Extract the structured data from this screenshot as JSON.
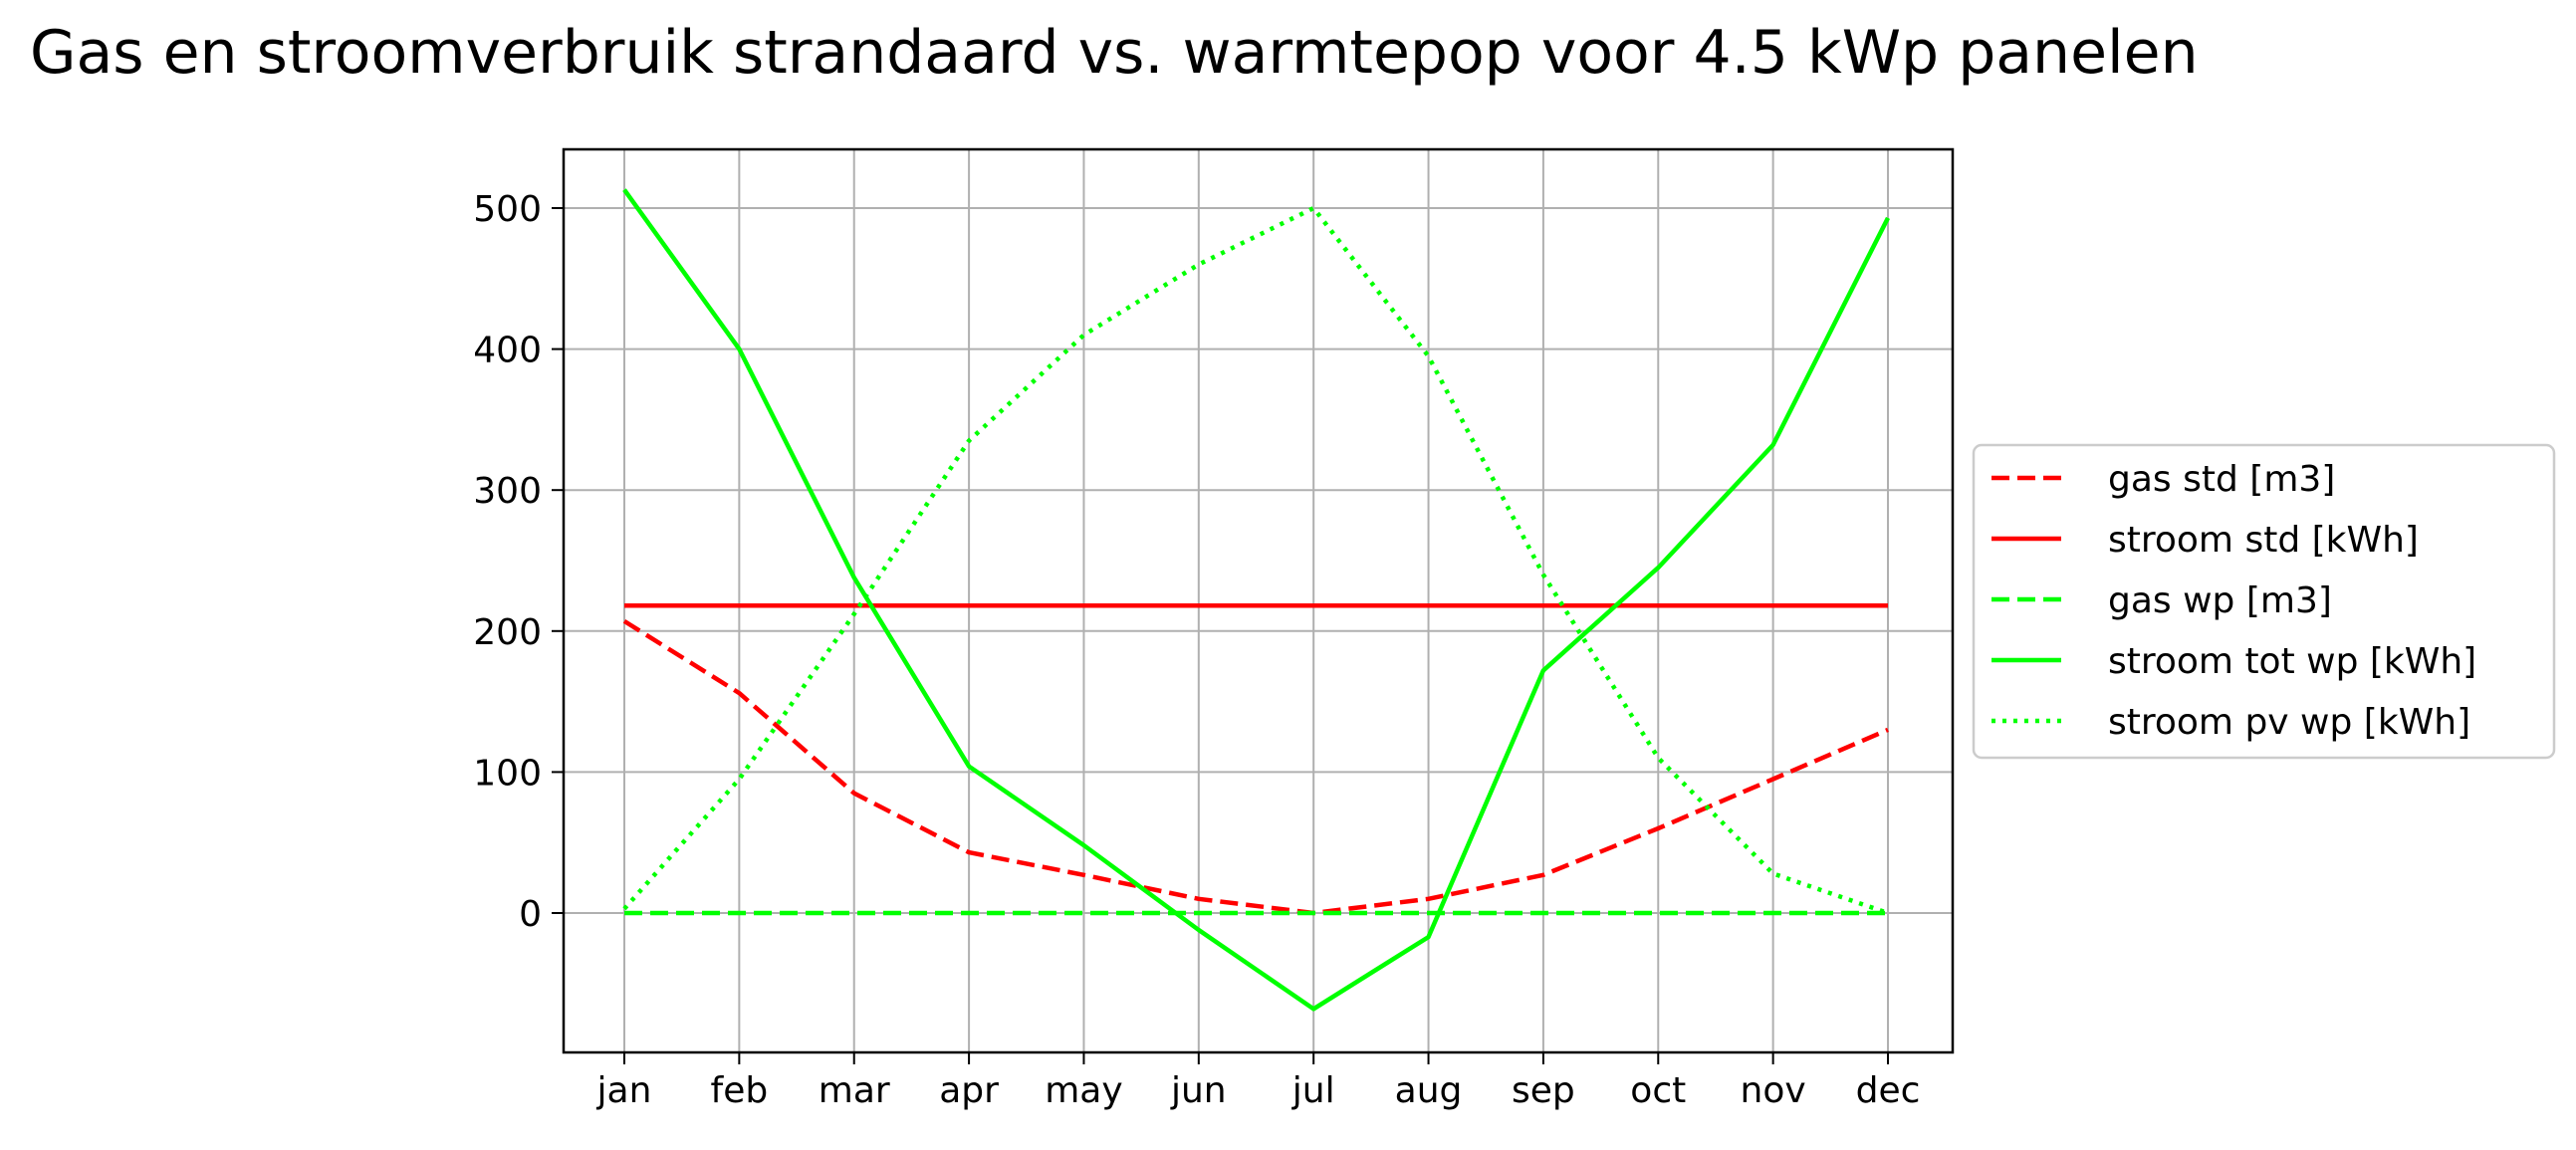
{
  "chart_data": {
    "type": "line",
    "title": "Gas en stroomverbruik strandaard vs. warmtepop voor 4.5 kWp panelen",
    "xlabel": "",
    "ylabel": "",
    "categories": [
      "jan",
      "feb",
      "mar",
      "apr",
      "may",
      "jun",
      "jul",
      "aug",
      "sep",
      "oct",
      "nov",
      "dec"
    ],
    "yticks": [
      0,
      100,
      200,
      300,
      400,
      500
    ],
    "ylim": [
      -98,
      540
    ],
    "grid": true,
    "legend": "center-right-outside",
    "series": [
      {
        "name": "gas std [m3]",
        "color": "#ff0000",
        "style": "dashed",
        "values": [
          207,
          156,
          85,
          43,
          27,
          10,
          0,
          10,
          27,
          60,
          95,
          130
        ]
      },
      {
        "name": "stroom std [kWh]",
        "color": "#ff0000",
        "style": "solid",
        "values": [
          218,
          218,
          218,
          218,
          218,
          218,
          218,
          218,
          218,
          218,
          218,
          218
        ]
      },
      {
        "name": "gas wp [m3]",
        "color": "#00ff00",
        "style": "dashed",
        "values": [
          0,
          0,
          0,
          0,
          0,
          0,
          0,
          0,
          0,
          0,
          0,
          0
        ]
      },
      {
        "name": "stroom tot wp [kWh]",
        "color": "#00ff00",
        "style": "solid",
        "values": [
          513,
          400,
          238,
          104,
          48,
          -12,
          -68,
          -17,
          172,
          245,
          332,
          493
        ]
      },
      {
        "name": "stroom pv wp [kWh]",
        "color": "#00ff00",
        "style": "dotted",
        "values": [
          3,
          95,
          212,
          335,
          410,
          460,
          500,
          395,
          240,
          110,
          28,
          0
        ]
      }
    ]
  }
}
